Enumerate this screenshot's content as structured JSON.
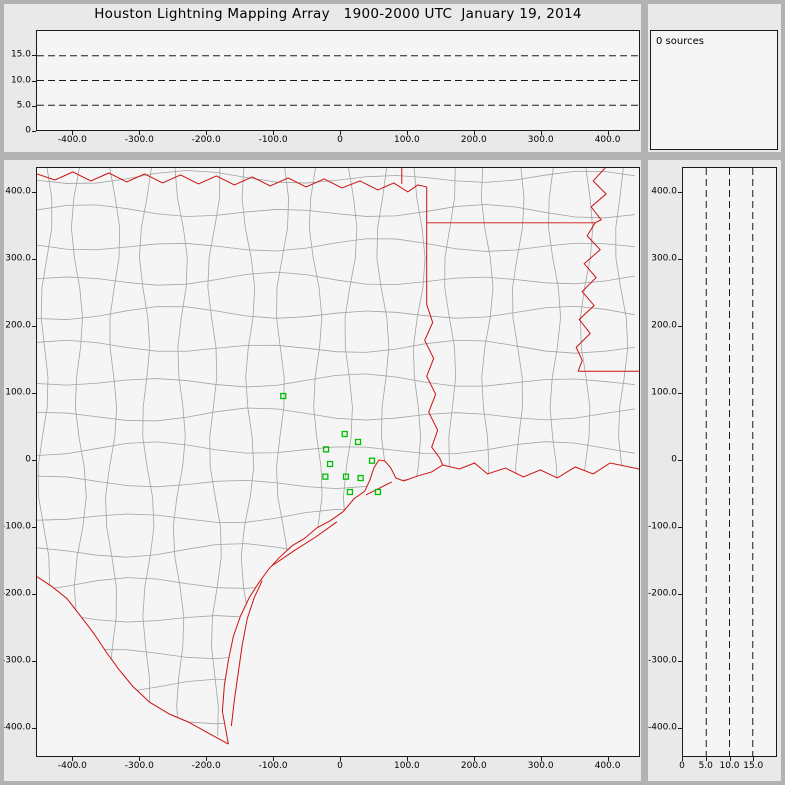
{
  "title": "Houston Lightning Mapping Array   1900-2000 UTC  January 19, 2014",
  "colors": {
    "state_border_red": "#cc1111",
    "county_gray": "#a3a3a3",
    "station_green": "#00bd00",
    "frame_gray": "#b2b2b2",
    "panel_bg": "#f5f5f5",
    "page_bg": "#e9e9e9",
    "dashed_line_black": "#1b1b1b"
  },
  "chart_data": [
    {
      "id": "altitude_vs_eastwest",
      "type": "scatter",
      "x_tick_labels": [
        "-400.0",
        "-300.0",
        "-200.0",
        "-100.0",
        "0",
        "100.0",
        "200.0",
        "300.0",
        "400.0"
      ],
      "x_tick_values": [
        -400,
        -300,
        -200,
        -100,
        0,
        100,
        200,
        300,
        400
      ],
      "xlim": [
        -454,
        448
      ],
      "y_tick_labels": [
        "15.0",
        "10.0",
        "5.0",
        "0"
      ],
      "y_tick_values": [
        15,
        10,
        5,
        0
      ],
      "ylim": [
        0,
        20
      ],
      "dashed_gridlines_y": [
        15,
        10,
        5
      ],
      "points": []
    },
    {
      "id": "source_count",
      "type": "histogram",
      "label": "0 sources",
      "source_count": 0,
      "points": []
    },
    {
      "id": "plan_view_map",
      "type": "scatter",
      "x_tick_labels": [
        "-400.0",
        "-300.0",
        "-200.0",
        "-100.0",
        "0",
        "100.0",
        "200.0",
        "300.0",
        "400.0"
      ],
      "x_tick_values": [
        -400,
        -300,
        -200,
        -100,
        0,
        100,
        200,
        300,
        400
      ],
      "xlim": [
        -454,
        448
      ],
      "y_tick_labels": [
        "400.0",
        "300.0",
        "200.0",
        "100.0",
        "0",
        "-100.0",
        "-200.0",
        "-300.0",
        "-400.0"
      ],
      "y_tick_values": [
        400,
        300,
        200,
        100,
        0,
        -100,
        -200,
        -300,
        -400
      ],
      "ylim": [
        -444,
        438
      ],
      "map_layers": [
        "county-boundaries-gray",
        "state-borders-red",
        "coastline-red",
        "rio-grande-red",
        "barrier-islands-red"
      ],
      "station_marker": "open-green-square",
      "lma_stations_km": [
        [
          -85,
          96
        ],
        [
          7,
          39
        ],
        [
          -21,
          16
        ],
        [
          27,
          27
        ],
        [
          -15,
          -6
        ],
        [
          -22,
          -25
        ],
        [
          9,
          -25
        ],
        [
          31,
          -27
        ],
        [
          48,
          -1
        ],
        [
          15,
          -48
        ],
        [
          57,
          -48
        ]
      ],
      "points": []
    },
    {
      "id": "altitude_vs_northsouth",
      "type": "scatter",
      "x_tick_labels": [
        "0",
        "5.0",
        "10.0",
        "15.0"
      ],
      "x_tick_values": [
        0,
        5,
        10,
        15
      ],
      "xlim": [
        0,
        20
      ],
      "y_tick_labels": [
        "400.0",
        "300.0",
        "200.0",
        "100.0",
        "0",
        "-100.0",
        "-200.0",
        "-300.0",
        "-400.0"
      ],
      "y_tick_values": [
        400,
        300,
        200,
        100,
        0,
        -100,
        -200,
        -300,
        -400
      ],
      "ylim": [
        -444,
        438
      ],
      "dashed_gridlines_x": [
        5,
        10,
        15
      ],
      "points": []
    }
  ]
}
